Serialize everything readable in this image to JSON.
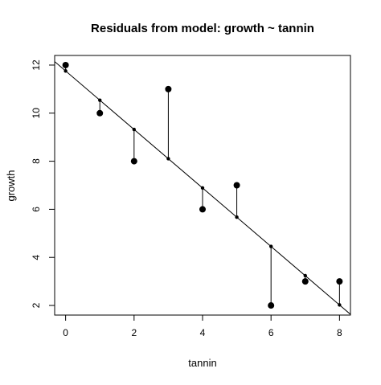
{
  "chart_data": {
    "type": "scatter",
    "title": "Residuals from model:  growth  ~  tannin",
    "xlabel": "tannin",
    "ylabel": "growth",
    "xlim": [
      -0.32,
      8.32
    ],
    "ylim": [
      1.6,
      12.4
    ],
    "x_ticks": [
      0,
      2,
      4,
      6,
      8
    ],
    "y_ticks": [
      2,
      4,
      6,
      8,
      10,
      12
    ],
    "grid": false,
    "points": {
      "x": [
        0,
        1,
        2,
        3,
        4,
        5,
        6,
        7,
        8
      ],
      "y": [
        12,
        10,
        8,
        11,
        6,
        7,
        2,
        3,
        3
      ]
    },
    "fitted": {
      "x": [
        0,
        1,
        2,
        3,
        4,
        5,
        6,
        7,
        8
      ],
      "y": [
        11.756,
        10.539,
        9.322,
        8.106,
        6.889,
        5.672,
        4.456,
        3.239,
        2.022
      ]
    },
    "regression_line": {
      "intercept": 11.756,
      "slope": -1.217
    },
    "colors": {
      "points": "#000000",
      "line": "#000000",
      "background": "#ffffff"
    }
  }
}
